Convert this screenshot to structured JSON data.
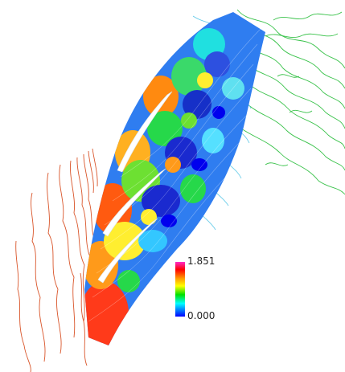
{
  "colorbar": {
    "max_label": "1.851",
    "min_label": "0.000",
    "colors": [
      "#ff2ac8",
      "#ff0000",
      "#ff9900",
      "#ffff00",
      "#00e000",
      "#00ffff",
      "#0000ff"
    ]
  },
  "colors": {
    "inlet_contours": "#d9552a",
    "outlet_contours": "#39c24a",
    "wake_contours": "#5fc9e8",
    "blade": "#ffffff"
  }
}
